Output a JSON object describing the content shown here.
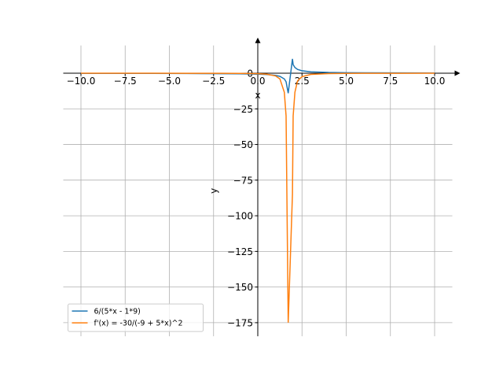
{
  "chart_data": {
    "type": "line",
    "x_label": "x",
    "y_label": "y",
    "x": [
      -10,
      -8,
      -6,
      -4,
      -2,
      -1,
      0,
      0.5,
      1,
      1.25,
      1.5,
      1.6,
      1.72,
      1.96,
      2.0,
      2.1,
      2.25,
      2.5,
      3,
      4,
      5,
      6,
      8,
      10
    ],
    "series": [
      {
        "name": "6/(5*x - 1*9)",
        "color": "#1f77b4",
        "values": [
          -0.1,
          -0.12,
          -0.15,
          -0.21,
          -0.32,
          -0.43,
          -0.67,
          -0.92,
          -1.5,
          -2.18,
          -4,
          -6,
          -14,
          10,
          6,
          4,
          2.67,
          1.71,
          1,
          0.55,
          0.375,
          0.29,
          0.19,
          0.15
        ]
      },
      {
        "name": "f'(x) = -30/(-9 + 5*x)^2",
        "color": "#ff7f0e",
        "values": [
          -0.0086,
          -0.012,
          -0.019,
          -0.036,
          -0.083,
          -0.15,
          -0.37,
          -0.71,
          -1.88,
          -3.97,
          -13.3,
          -30,
          -175,
          -85,
          -30,
          -13.3,
          -5.3,
          -2.45,
          -0.83,
          -0.25,
          -0.12,
          -0.069,
          -0.031,
          -0.018
        ]
      }
    ],
    "xlim": [
      -11,
      11
    ],
    "ylim": [
      -184.5,
      19.5
    ],
    "xticks": [
      {
        "value": -10,
        "label": "−10.0"
      },
      {
        "value": -7.5,
        "label": "−7.5"
      },
      {
        "value": -5,
        "label": "−5.0"
      },
      {
        "value": -2.5,
        "label": "−2.5"
      },
      {
        "value": 0,
        "label": "0.0"
      },
      {
        "value": 2.5,
        "label": "2.5"
      },
      {
        "value": 5,
        "label": "5.0"
      },
      {
        "value": 7.5,
        "label": "7.5"
      },
      {
        "value": 10,
        "label": "10.0"
      }
    ],
    "yticks": [
      0,
      {
        "value": -25,
        "label": "−25"
      },
      {
        "value": -50,
        "label": "−50"
      },
      {
        "value": -75,
        "label": "−75"
      },
      {
        "value": -100,
        "label": "−100"
      },
      {
        "value": -125,
        "label": "−125"
      },
      {
        "value": -150,
        "label": "−150"
      },
      {
        "value": -175,
        "label": "−175"
      }
    ],
    "grid": true,
    "legend": "lower left"
  }
}
